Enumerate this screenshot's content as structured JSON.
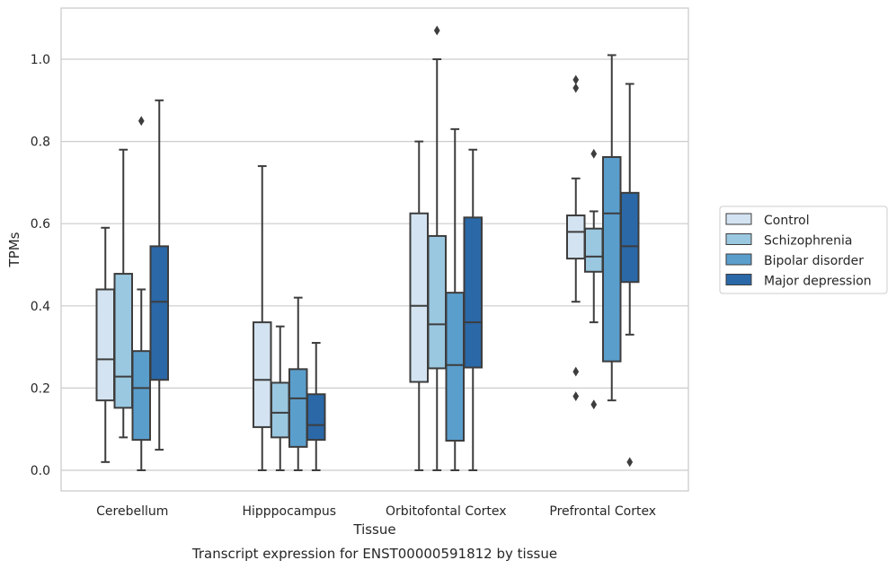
{
  "caption": "Transcript expression for ENST00000591812 by tissue",
  "chart_data": {
    "type": "box",
    "title": "",
    "xlabel": "Tissue",
    "ylabel": "TPMs",
    "ylim": [
      -0.05,
      1.13
    ],
    "yticks": [
      "0.0",
      "0.2",
      "0.4",
      "0.6",
      "0.8",
      "1.0"
    ],
    "grid": "horizontal",
    "legend_position": "right",
    "categories": [
      "Cerebellum",
      "Hipppocampus",
      "Orbitofontal Cortex",
      "Prefrontal Cortex"
    ],
    "series": [
      {
        "name": "Control",
        "color": "#d3e3f1",
        "boxes": [
          {
            "whisker_low": 0.02,
            "q1": 0.17,
            "median": 0.27,
            "q3": 0.44,
            "whisker_high": 0.59,
            "outliers": []
          },
          {
            "whisker_low": 0.0,
            "q1": 0.105,
            "median": 0.22,
            "q3": 0.36,
            "whisker_high": 0.74,
            "outliers": []
          },
          {
            "whisker_low": 0.0,
            "q1": 0.215,
            "median": 0.4,
            "q3": 0.625,
            "whisker_high": 0.8,
            "outliers": []
          },
          {
            "whisker_low": 0.41,
            "q1": 0.515,
            "median": 0.58,
            "q3": 0.62,
            "whisker_high": 0.71,
            "outliers": [
              0.95,
              0.93,
              0.24,
              0.18
            ]
          }
        ]
      },
      {
        "name": "Schizophrenia",
        "color": "#9ac8e0",
        "boxes": [
          {
            "whisker_low": 0.08,
            "q1": 0.152,
            "median": 0.228,
            "q3": 0.478,
            "whisker_high": 0.78,
            "outliers": []
          },
          {
            "whisker_low": 0.0,
            "q1": 0.08,
            "median": 0.14,
            "q3": 0.213,
            "whisker_high": 0.35,
            "outliers": []
          },
          {
            "whisker_low": 0.0,
            "q1": 0.248,
            "median": 0.355,
            "q3": 0.57,
            "whisker_high": 1.0,
            "outliers": [
              1.07
            ]
          },
          {
            "whisker_low": 0.36,
            "q1": 0.483,
            "median": 0.52,
            "q3": 0.588,
            "whisker_high": 0.63,
            "outliers": [
              0.77,
              0.16
            ]
          }
        ]
      },
      {
        "name": "Bipolar disorder",
        "color": "#5a9ecc",
        "boxes": [
          {
            "whisker_low": 0.0,
            "q1": 0.074,
            "median": 0.2,
            "q3": 0.29,
            "whisker_high": 0.44,
            "outliers": [
              0.85
            ]
          },
          {
            "whisker_low": 0.0,
            "q1": 0.057,
            "median": 0.175,
            "q3": 0.246,
            "whisker_high": 0.42,
            "outliers": []
          },
          {
            "whisker_low": 0.0,
            "q1": 0.072,
            "median": 0.256,
            "q3": 0.432,
            "whisker_high": 0.83,
            "outliers": []
          },
          {
            "whisker_low": 0.17,
            "q1": 0.265,
            "median": 0.625,
            "q3": 0.762,
            "whisker_high": 1.01,
            "outliers": []
          }
        ]
      },
      {
        "name": "Major depression",
        "color": "#2a68a8",
        "boxes": [
          {
            "whisker_low": 0.05,
            "q1": 0.22,
            "median": 0.41,
            "q3": 0.545,
            "whisker_high": 0.9,
            "outliers": []
          },
          {
            "whisker_low": 0.0,
            "q1": 0.074,
            "median": 0.11,
            "q3": 0.185,
            "whisker_high": 0.31,
            "outliers": []
          },
          {
            "whisker_low": 0.0,
            "q1": 0.25,
            "median": 0.36,
            "q3": 0.615,
            "whisker_high": 0.78,
            "outliers": []
          },
          {
            "whisker_low": 0.33,
            "q1": 0.458,
            "median": 0.545,
            "q3": 0.675,
            "whisker_high": 0.94,
            "outliers": [
              0.02
            ]
          }
        ]
      }
    ]
  }
}
